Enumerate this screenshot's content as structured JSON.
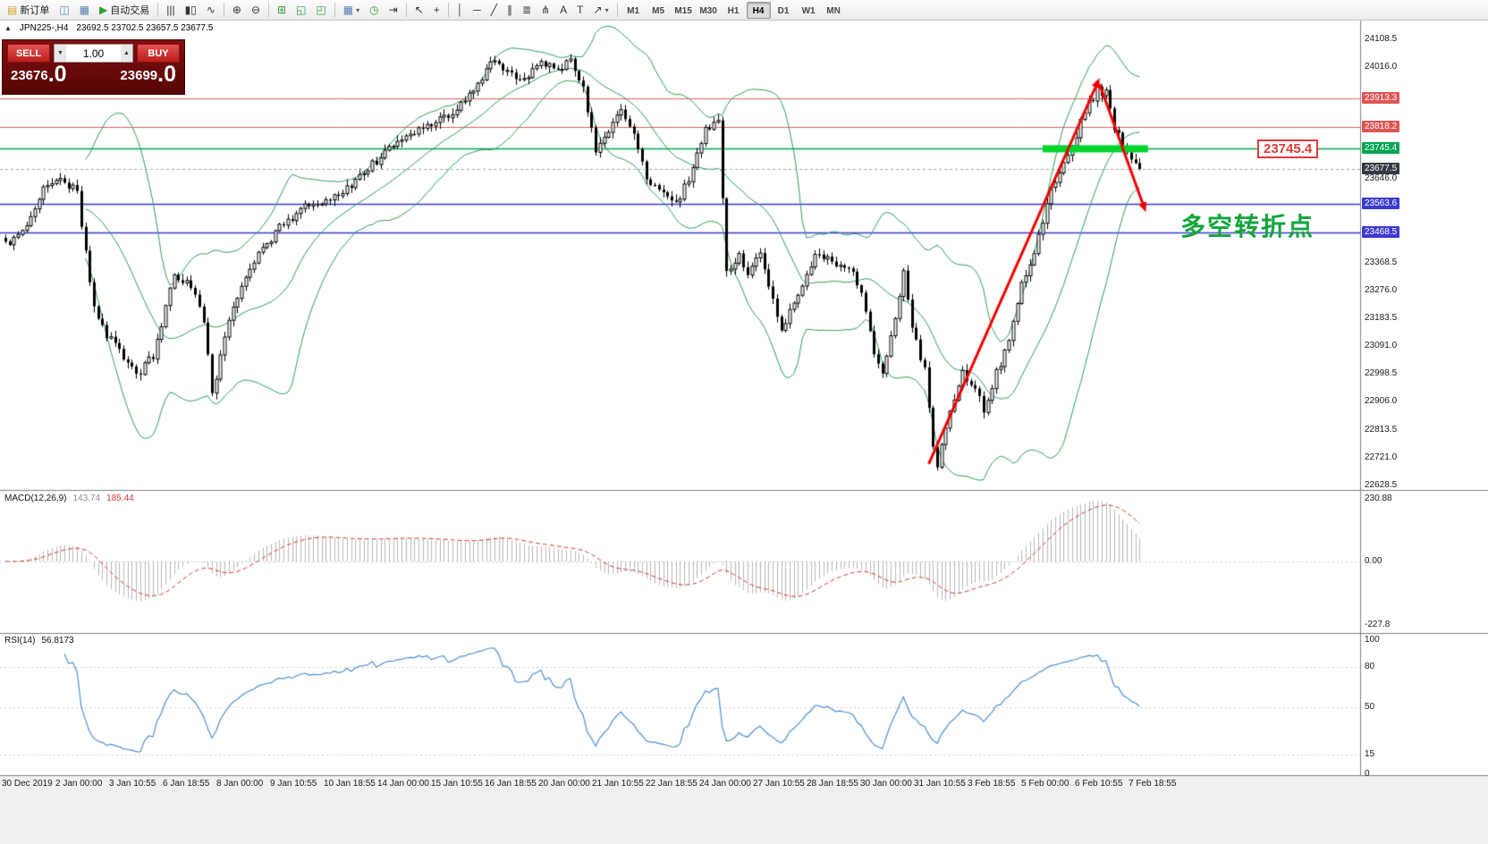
{
  "toolbar": {
    "items": [
      {
        "name": "new-order-button",
        "glyph": "▤",
        "color": "#d9a425",
        "label": "新订单"
      },
      {
        "name": "chart-windows-icon",
        "glyph": "◫",
        "color": "#5b7fb5"
      },
      {
        "name": "profile-charts-icon",
        "glyph": "▦",
        "color": "#5b7fb5"
      },
      {
        "name": "auto-trading-button",
        "glyph": "▶",
        "color": "#2ba03a",
        "label": "自动交易"
      },
      {
        "name": "sep1",
        "sep": true
      },
      {
        "name": "ohlc-bars-icon",
        "glyph": "|||",
        "color": "#333333"
      },
      {
        "name": "candlestick-chart-icon",
        "glyph": "▮▯",
        "color": "#333333"
      },
      {
        "name": "line-chart-icon",
        "glyph": "∿",
        "color": "#333333"
      },
      {
        "name": "sep2",
        "sep": true
      },
      {
        "name": "zoom-in-icon",
        "glyph": "⊕",
        "color": "#333333"
      },
      {
        "name": "zoom-out-icon",
        "glyph": "⊖",
        "color": "#333333"
      },
      {
        "name": "sep3",
        "sep": true
      },
      {
        "name": "tile-windows-icon",
        "glyph": "⊞",
        "color": "#2ba03a"
      },
      {
        "name": "cascade-windows-icon",
        "glyph": "◱",
        "color": "#2ba03a"
      },
      {
        "name": "arrange-windows-icon",
        "glyph": "◰",
        "color": "#2ba03a"
      },
      {
        "name": "sep4",
        "sep": true
      },
      {
        "name": "new-chart-dropdown",
        "glyph": "▦",
        "caret": true,
        "color": "#5b7fb5"
      },
      {
        "name": "period-refresh-icon",
        "glyph": "◷",
        "color": "#2ba03a"
      },
      {
        "name": "chart-shift-icon",
        "glyph": "⇥",
        "color": "#333333"
      },
      {
        "name": "sep5",
        "sep": true
      },
      {
        "name": "cursor-icon",
        "glyph": "↖",
        "color": "#333333"
      },
      {
        "name": "crosshair-icon",
        "glyph": "+",
        "color": "#333333"
      },
      {
        "name": "sep6",
        "sep": true
      },
      {
        "name": "vertical-line-icon",
        "glyph": "│",
        "color": "#333333"
      },
      {
        "name": "horizontal-line-icon",
        "glyph": "─",
        "color": "#333333"
      },
      {
        "name": "trendline-icon",
        "glyph": "╱",
        "color": "#333333"
      },
      {
        "name": "channel-icon",
        "glyph": "∥",
        "color": "#333333"
      },
      {
        "name": "fibonacci-icon",
        "glyph": "≣",
        "color": "#333333"
      },
      {
        "name": "pitchfork-icon",
        "glyph": "⋔",
        "color": "#333333"
      },
      {
        "name": "text-icon",
        "glyph": "A",
        "color": "#333333"
      },
      {
        "name": "text-label-icon",
        "glyph": "T",
        "color": "#333333"
      },
      {
        "name": "arrows-dropdown",
        "glyph": "↗",
        "caret": true,
        "color": "#333333"
      },
      {
        "name": "sep7",
        "sep": true
      }
    ]
  },
  "timeframes": {
    "items": [
      "M1",
      "M5",
      "M15",
      "M30",
      "H1",
      "H4",
      "D1",
      "W1",
      "MN"
    ],
    "active": "H4"
  },
  "chart_header": {
    "collapse_glyph": "▲",
    "symbol": "JPN225-,H4",
    "ohlc": "23692.5 23702.5 23657.5 23677.5"
  },
  "trade_panel": {
    "sell_label": "SELL",
    "buy_label": "BUY",
    "volume": "1.00",
    "vol_down_glyph": "▼",
    "vol_up_glyph": "▲",
    "sell_price_main": "23676",
    "sell_price_frac": ".0",
    "buy_price_main": "23699",
    "buy_price_frac": ".0"
  },
  "chart_data": {
    "type": "candlestick",
    "symbol": "JPN225-",
    "timeframe": "H4",
    "n_candles": 270,
    "price_range": [
      22628.5,
      24108.5
    ],
    "current_price": 23677.5,
    "axis_labels": [
      {
        "price": 24108.5,
        "style": "plain"
      },
      {
        "price": 24016.0,
        "style": "plain"
      },
      {
        "price": 23913.3,
        "style": "red"
      },
      {
        "price": 23818.2,
        "style": "red"
      },
      {
        "price": 23745.4,
        "style": "green"
      },
      {
        "price": 23677.5,
        "style": "current"
      },
      {
        "price": 23646.0,
        "style": "plain"
      },
      {
        "price": 23563.6,
        "style": "blue"
      },
      {
        "price": 23468.5,
        "style": "blue"
      },
      {
        "price": 23368.5,
        "style": "plain"
      },
      {
        "price": 23276.0,
        "style": "plain"
      },
      {
        "price": 23183.5,
        "style": "plain"
      },
      {
        "price": 23091.0,
        "style": "plain"
      },
      {
        "price": 22998.5,
        "style": "plain"
      },
      {
        "price": 22906.0,
        "style": "plain"
      },
      {
        "price": 22813.5,
        "style": "plain"
      },
      {
        "price": 22721.0,
        "style": "plain"
      },
      {
        "price": 22628.5,
        "style": "plain"
      }
    ],
    "hlines": [
      {
        "price": 23913.3,
        "color": "#dd6060",
        "width": 1
      },
      {
        "price": 23818.2,
        "color": "#dd6060",
        "width": 1
      },
      {
        "price": 23745.4,
        "color": "#00a651",
        "width": 1.4
      },
      {
        "price": 23563.6,
        "color": "#3b3bd1",
        "width": 1.4
      },
      {
        "price": 23468.5,
        "color": "#3b3bd1",
        "width": 1.4
      }
    ],
    "bollinger": {
      "period": 20,
      "deviation": 2,
      "color": "#2f9e5e"
    },
    "waypoints": [
      [
        0,
        23430
      ],
      [
        4,
        23470
      ],
      [
        9,
        23610
      ],
      [
        13,
        23650
      ],
      [
        17,
        23600
      ],
      [
        20,
        23300
      ],
      [
        22,
        23170
      ],
      [
        26,
        23090
      ],
      [
        31,
        22990
      ],
      [
        35,
        23060
      ],
      [
        40,
        23330
      ],
      [
        44,
        23290
      ],
      [
        47,
        23180
      ],
      [
        49,
        22930
      ],
      [
        52,
        23120
      ],
      [
        56,
        23300
      ],
      [
        60,
        23400
      ],
      [
        66,
        23500
      ],
      [
        72,
        23560
      ],
      [
        80,
        23600
      ],
      [
        86,
        23680
      ],
      [
        92,
        23760
      ],
      [
        99,
        23810
      ],
      [
        106,
        23860
      ],
      [
        112,
        23950
      ],
      [
        116,
        24050
      ],
      [
        119,
        24000
      ],
      [
        123,
        23970
      ],
      [
        127,
        24030
      ],
      [
        131,
        24010
      ],
      [
        134,
        24030
      ],
      [
        137,
        23950
      ],
      [
        140,
        23740
      ],
      [
        143,
        23790
      ],
      [
        146,
        23880
      ],
      [
        149,
        23800
      ],
      [
        152,
        23650
      ],
      [
        156,
        23590
      ],
      [
        159,
        23560
      ],
      [
        163,
        23680
      ],
      [
        166,
        23810
      ],
      [
        169,
        23840
      ],
      [
        171,
        23330
      ],
      [
        174,
        23390
      ],
      [
        176,
        23340
      ],
      [
        179,
        23400
      ],
      [
        181,
        23300
      ],
      [
        184,
        23140
      ],
      [
        188,
        23260
      ],
      [
        192,
        23400
      ],
      [
        196,
        23370
      ],
      [
        200,
        23360
      ],
      [
        203,
        23270
      ],
      [
        206,
        23070
      ],
      [
        208,
        23000
      ],
      [
        211,
        23170
      ],
      [
        213,
        23350
      ],
      [
        215,
        23150
      ],
      [
        218,
        23010
      ],
      [
        220,
        22760
      ],
      [
        221,
        22700
      ],
      [
        224,
        22880
      ],
      [
        227,
        23000
      ],
      [
        230,
        22960
      ],
      [
        232,
        22880
      ],
      [
        235,
        23000
      ],
      [
        238,
        23100
      ],
      [
        241,
        23300
      ],
      [
        244,
        23400
      ],
      [
        248,
        23620
      ],
      [
        252,
        23720
      ],
      [
        256,
        23870
      ],
      [
        259,
        23940
      ],
      [
        261,
        23930
      ],
      [
        263,
        23820
      ],
      [
        265,
        23760
      ],
      [
        267,
        23700
      ],
      [
        269,
        23677.5
      ]
    ],
    "annotations": {
      "arrow_color": "#f20000",
      "up_arrow": {
        "from": [
          219,
          22700
        ],
        "to": [
          259.5,
          23980
        ]
      },
      "down_arrow": {
        "from": [
          259.5,
          23960
        ],
        "to": [
          270.5,
          23535
        ]
      },
      "green_bar": {
        "price": 23745.4,
        "from_i": 246,
        "to_i": 271,
        "color": "#00d52e"
      },
      "text": {
        "label": "多空转折点",
        "color": "#13a53c"
      },
      "price_tag": {
        "label": "23745.4",
        "color": "#e03a3a"
      }
    }
  },
  "macd": {
    "label": "MACD(12,26,9)",
    "value_main": "143.74",
    "value_signal": "185.44",
    "axis": [
      "230.88",
      "0.00",
      "-227.8"
    ],
    "histogram_color": "#b9b9b9",
    "signal_color": "#d23b3b"
  },
  "rsi": {
    "label": "RSI(14)",
    "value": "56.8173",
    "axis": [
      100,
      80,
      50,
      15,
      0
    ],
    "levels": [
      80,
      50,
      15
    ],
    "line_color": "#4f8fd0"
  },
  "time_axis": {
    "labels": [
      "30 Dec 2019",
      "2 Jan 00:00",
      "3 Jan 10:55",
      "6 Jan 18:55",
      "8 Jan 00:00",
      "9 Jan 10:55",
      "10 Jan 18:55",
      "14 Jan 00:00",
      "15 Jan 10:55",
      "16 Jan 18:55",
      "20 Jan 00:00",
      "21 Jan 10:55",
      "22 Jan 18:55",
      "24 Jan 00:00",
      "27 Jan 10:55",
      "28 Jan 18:55",
      "30 Jan 00:00",
      "31 Jan 10:55",
      "3 Feb 18:55",
      "5 Feb 00:00",
      "6 Feb 10:55",
      "7 Feb 18:55"
    ]
  }
}
